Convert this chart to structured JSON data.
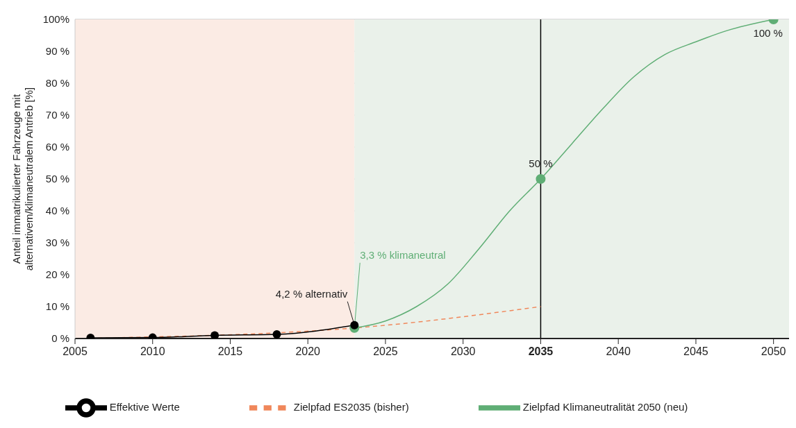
{
  "chart_data": {
    "type": "line",
    "ylabel": "Anteil immatrikulierter Fahrzeuge mit alternativem/klimaneutralem Antrieb [%]",
    "xlim": [
      2005,
      2051
    ],
    "xticks": [
      2005,
      2010,
      2015,
      2020,
      2025,
      2030,
      2035,
      2040,
      2045,
      2050
    ],
    "ylim": [
      0,
      100
    ],
    "yticks": [
      {
        "value": 0,
        "label": "0 %"
      },
      {
        "value": 10,
        "label": "10 %"
      },
      {
        "value": 20,
        "label": "20 %"
      },
      {
        "value": 30,
        "label": "30 %"
      },
      {
        "value": 40,
        "label": "40 %"
      },
      {
        "value": 50,
        "label": "50 %"
      },
      {
        "value": 60,
        "label": "60 %"
      },
      {
        "value": 70,
        "label": "70 %"
      },
      {
        "value": 80,
        "label": "80 %"
      },
      {
        "value": 90,
        "label": "90 %"
      },
      {
        "value": 100,
        "label": "100%"
      }
    ],
    "grid": "y",
    "legend": "bottom",
    "series": [
      {
        "name": "Zielpfad ES2035 (bisher)",
        "color": "#f0875a",
        "line_style": "dashed",
        "marker": "none",
        "x": [
          2006,
          2023,
          2035
        ],
        "values": [
          0.1,
          3.3,
          10
        ]
      },
      {
        "name": "Effektive Werte",
        "color": "#000000",
        "line_style": "solid",
        "marker": "circle",
        "x": [
          2006,
          2010,
          2014,
          2018,
          2023
        ],
        "values": [
          0.2,
          0.3,
          1.0,
          1.3,
          4.2
        ]
      },
      {
        "name": "Zielpfad Klimaneutralität 2050 (neu)",
        "color": "#5fae75",
        "line_style": "solid",
        "marker": "none",
        "x": [
          2023,
          2025,
          2027,
          2029,
          2031,
          2033,
          2035,
          2037,
          2039,
          2041,
          2043,
          2045,
          2047,
          2050
        ],
        "values": [
          3.3,
          5.5,
          10,
          17,
          28,
          40,
          50,
          61,
          72,
          82,
          89,
          93,
          96.5,
          100
        ]
      },
      {
        "type": "scatter",
        "color": "#5fae75",
        "marker": "circle",
        "x": [
          2023,
          2035,
          2050
        ],
        "values": [
          3.3,
          50,
          100
        ],
        "value_labels": [
          null,
          "50 %",
          "100 %"
        ]
      }
    ],
    "bands": [
      {
        "axis": "x",
        "from": 2005,
        "to": 2023,
        "color": "#fbebe4"
      },
      {
        "axis": "x",
        "from": 2023,
        "to": 2051,
        "color": "#eaf1ea"
      }
    ],
    "ref_lines": [
      {
        "axis": "x",
        "value": 2035,
        "color": "#000000"
      }
    ],
    "annotations": [
      {
        "text": "4,2 % alternativ",
        "x": 2023,
        "y": 4.2
      },
      {
        "text": "3,3 % klimaneutral",
        "x": 2023,
        "y": 3.3
      }
    ]
  }
}
